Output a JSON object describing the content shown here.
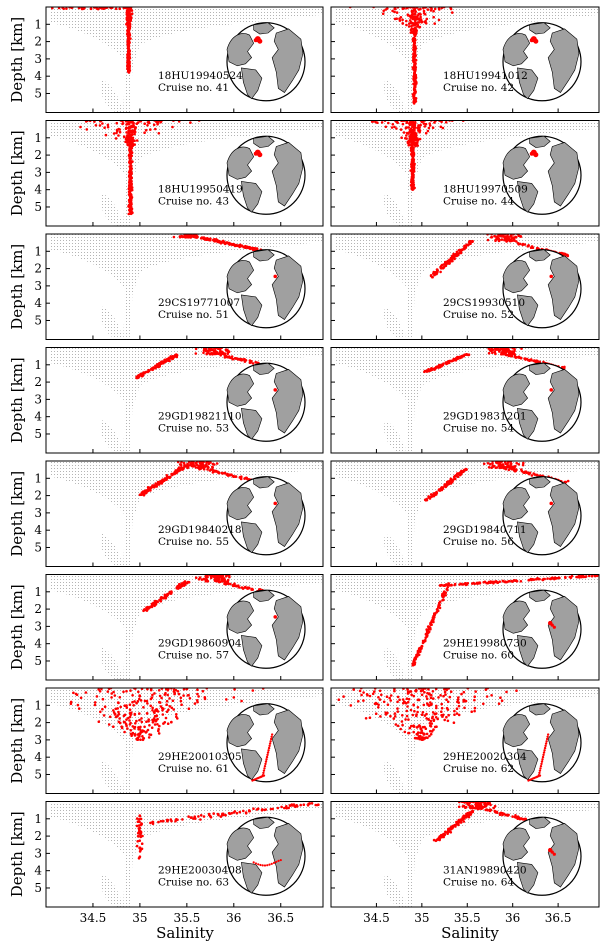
{
  "figure": {
    "xlabel": "Salinity",
    "ylabel": "Depth [km]",
    "x_ticks": [
      34.5,
      35,
      35.5,
      36,
      36.5
    ],
    "x_tick_labels": [
      "34.5",
      "35",
      "35.5",
      "36",
      "36.5"
    ],
    "y_ticks": [
      1,
      2,
      3,
      4,
      5
    ],
    "y_tick_labels": [
      "1",
      "2",
      "3",
      "4",
      "5"
    ],
    "cruise_prefix": "Cruise no.",
    "colors": {
      "background_data": "#b4b4b4",
      "highlight": "#ff0000",
      "land": "#a0a0a0",
      "ocean": "#ffffff"
    }
  },
  "chart_data": [
    {
      "type": "scatter",
      "cruise_id": "18HU19940524",
      "cruise_no": "41",
      "xlim": [
        34.0,
        36.95
      ],
      "ylim": [
        6.1,
        0.0
      ],
      "profile": "deep_narrow",
      "profile_params": {
        "x0": 34.88,
        "center": 35.0,
        "bottom": 3.8,
        "spread": 0.3
      },
      "map_marker": "nw_atlantic"
    },
    {
      "type": "scatter",
      "cruise_id": "18HU19941012",
      "cruise_no": "42",
      "xlim": [
        34.0,
        36.95
      ],
      "ylim": [
        6.1,
        0.0
      ],
      "profile": "deep_wide",
      "profile_params": {
        "x0": 34.92,
        "center": 35.2,
        "bottom": 5.6,
        "spread": 0.8
      },
      "map_marker": "nw_atlantic"
    },
    {
      "type": "scatter",
      "cruise_id": "18HU19950419",
      "cruise_no": "43",
      "xlim": [
        34.0,
        36.95
      ],
      "ylim": [
        6.1,
        0.0
      ],
      "profile": "deep_wide",
      "profile_params": {
        "x0": 34.9,
        "center": 35.2,
        "bottom": 5.4,
        "spread": 0.8
      },
      "map_marker": "nw_atlantic"
    },
    {
      "type": "scatter",
      "cruise_id": "18HU19970509",
      "cruise_no": "44",
      "xlim": [
        34.0,
        36.95
      ],
      "ylim": [
        6.1,
        0.0
      ],
      "profile": "deep_wide",
      "profile_params": {
        "x0": 34.9,
        "center": 35.0,
        "bottom": 4.0,
        "spread": 0.6
      },
      "map_marker": "nw_atlantic"
    },
    {
      "type": "scatter",
      "cruise_id": "29CS19771007",
      "cruise_no": "51",
      "xlim": [
        34.0,
        36.95
      ],
      "ylim": [
        6.1,
        0.0
      ],
      "profile": "shallow_plume",
      "profile_params": {
        "x0": 35.5,
        "center": 35.9,
        "bottom": 1.1,
        "spread": 0.4
      },
      "map_marker": "gibraltar"
    },
    {
      "type": "scatter",
      "cruise_id": "29CS19930510",
      "cruise_no": "52",
      "xlim": [
        34.0,
        36.95
      ],
      "ylim": [
        6.1,
        0.0
      ],
      "profile": "shallow_curve",
      "profile_params": {
        "x0": 35.55,
        "center": 35.9,
        "bottom": 2.5,
        "spread": 0.45
      },
      "map_marker": "gibraltar"
    },
    {
      "type": "scatter",
      "cruise_id": "29GD19821110",
      "cruise_no": "53",
      "xlim": [
        34.0,
        36.95
      ],
      "ylim": [
        6.1,
        0.0
      ],
      "profile": "shallow_curve",
      "profile_params": {
        "x0": 35.4,
        "center": 35.8,
        "bottom": 1.8,
        "spread": 0.5
      },
      "map_marker": "gibraltar"
    },
    {
      "type": "scatter",
      "cruise_id": "29GD19831201",
      "cruise_no": "54",
      "xlim": [
        34.0,
        36.95
      ],
      "ylim": [
        6.1,
        0.0
      ],
      "profile": "shallow_curve",
      "profile_params": {
        "x0": 35.5,
        "center": 35.9,
        "bottom": 1.4,
        "spread": 0.5
      },
      "map_marker": "gibraltar"
    },
    {
      "type": "scatter",
      "cruise_id": "29GD19840218",
      "cruise_no": "55",
      "xlim": [
        34.0,
        36.95
      ],
      "ylim": [
        6.1,
        0.0
      ],
      "profile": "shallow_curve",
      "profile_params": {
        "x0": 35.45,
        "center": 35.6,
        "bottom": 2.0,
        "spread": 0.5
      },
      "map_marker": "gibraltar"
    },
    {
      "type": "scatter",
      "cruise_id": "29GD19840711",
      "cruise_no": "56",
      "xlim": [
        34.0,
        36.95
      ],
      "ylim": [
        6.1,
        0.0
      ],
      "profile": "shallow_curve",
      "profile_params": {
        "x0": 35.5,
        "center": 35.9,
        "bottom": 2.3,
        "spread": 0.5
      },
      "map_marker": "gibraltar"
    },
    {
      "type": "scatter",
      "cruise_id": "29GD19860904",
      "cruise_no": "57",
      "xlim": [
        34.0,
        36.95
      ],
      "ylim": [
        6.1,
        0.0
      ],
      "profile": "shallow_curve",
      "profile_params": {
        "x0": 35.5,
        "center": 35.8,
        "bottom": 2.1,
        "spread": 0.5
      },
      "map_marker": "gibraltar"
    },
    {
      "type": "scatter",
      "cruise_id": "29HE19980730",
      "cruise_no": "60",
      "xlim": [
        34.0,
        36.95
      ],
      "ylim": [
        6.1,
        0.0
      ],
      "profile": "deep_surface_fan",
      "profile_params": {
        "x0": 35.9,
        "center": 35.8,
        "bottom": 5.3,
        "spread": 1.2
      },
      "map_marker": "canary"
    },
    {
      "type": "scatter",
      "cruise_id": "29HE20010305",
      "cruise_no": "61",
      "xlim": [
        34.0,
        36.95
      ],
      "ylim": [
        6.1,
        0.0
      ],
      "profile": "wide_cloud",
      "profile_params": {
        "x0": 34.9,
        "center": 35.0,
        "bottom": 3.0,
        "spread": 1.2
      },
      "map_marker": "south_atlantic_line"
    },
    {
      "type": "scatter",
      "cruise_id": "29HE20020304",
      "cruise_no": "62",
      "xlim": [
        34.0,
        36.95
      ],
      "ylim": [
        6.1,
        0.0
      ],
      "profile": "wide_cloud",
      "profile_params": {
        "x0": 34.9,
        "center": 35.0,
        "bottom": 3.0,
        "spread": 1.2
      },
      "map_marker": "south_atlantic_line"
    },
    {
      "type": "scatter",
      "cruise_id": "29HE20030408",
      "cruise_no": "63",
      "xlim": [
        34.0,
        36.95
      ],
      "ylim": [
        6.1,
        0.0
      ],
      "profile": "sparse_spread",
      "profile_params": {
        "x0": 35.3,
        "center": 35.3,
        "bottom": 3.3,
        "spread": 1.0
      },
      "map_marker": "atlantic_arc"
    },
    {
      "type": "scatter",
      "cruise_id": "31AN19890420",
      "cruise_no": "64",
      "xlim": [
        34.0,
        36.95
      ],
      "ylim": [
        6.1,
        0.0
      ],
      "profile": "shallow_curve",
      "profile_params": {
        "x0": 35.6,
        "center": 35.6,
        "bottom": 2.3,
        "spread": 0.5
      },
      "map_marker": "canary"
    }
  ]
}
